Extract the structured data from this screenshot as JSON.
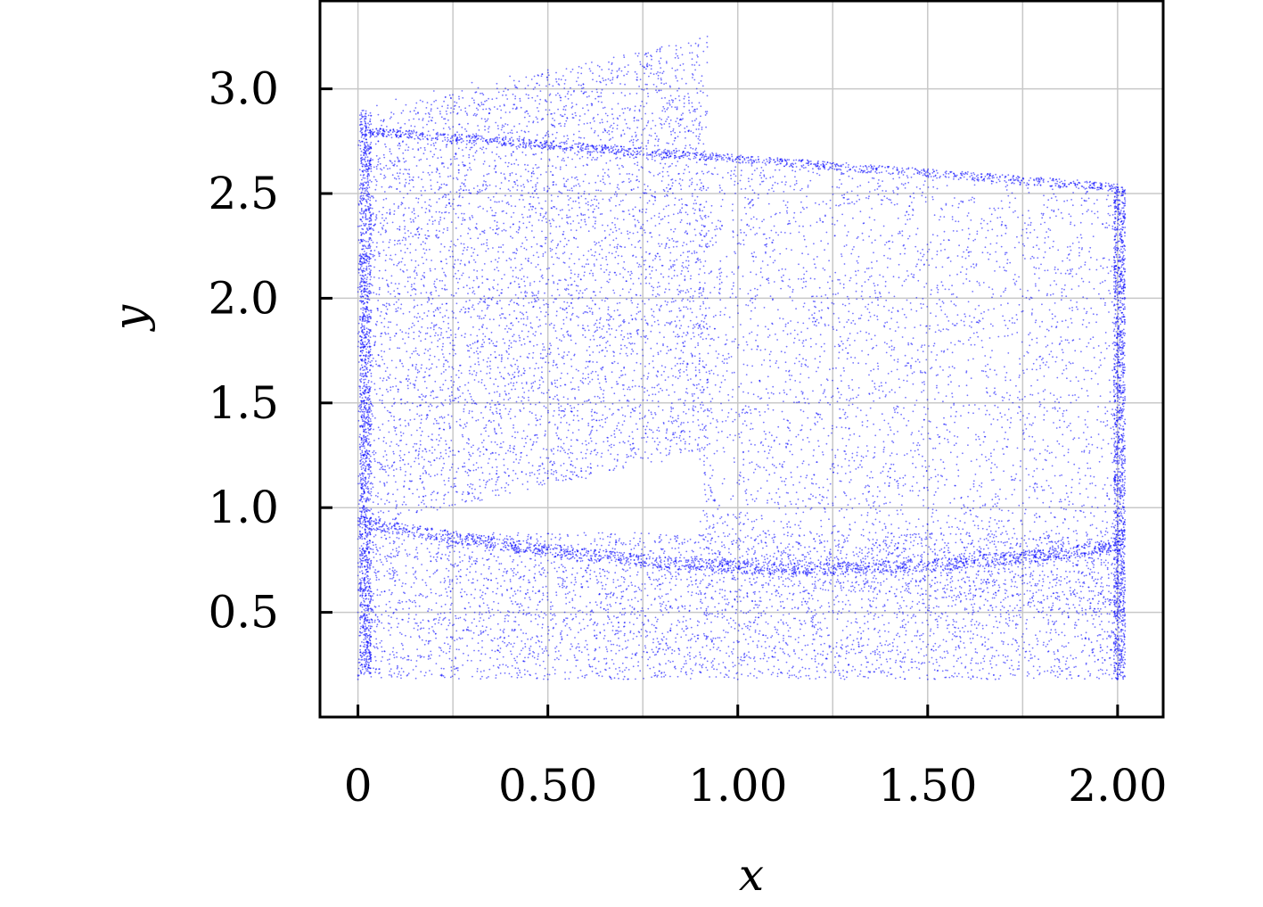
{
  "chart_data": {
    "type": "scatter",
    "xlabel": "x",
    "ylabel": "y",
    "xlim": [
      -0.1,
      2.12
    ],
    "ylim": [
      0.0,
      3.42
    ],
    "x_ticks": [
      0,
      0.5,
      1.0,
      1.5,
      2.0
    ],
    "x_tick_labels": [
      "0",
      "0.50",
      "1.00",
      "1.50",
      "2.00"
    ],
    "y_ticks": [
      0.5,
      1.0,
      1.5,
      2.0,
      2.5,
      3.0
    ],
    "y_tick_labels": [
      "0.5",
      "1.0",
      "1.5",
      "2.0",
      "2.5",
      "3.0"
    ],
    "grid_x": [
      0,
      0.25,
      0.5,
      0.75,
      1.0,
      1.25,
      1.5,
      1.75,
      2.0
    ],
    "grid": true,
    "point_color": "#0000ff",
    "series": [
      {
        "values_description_free": true,
        "points": [
          [
            0.02,
            2.88
          ],
          [
            0.05,
            2.92
          ],
          [
            0.1,
            2.95
          ],
          [
            0.2,
            2.99
          ],
          [
            0.3,
            3.03
          ],
          [
            0.4,
            3.06
          ],
          [
            0.5,
            3.09
          ],
          [
            0.6,
            3.12
          ],
          [
            0.7,
            3.16
          ],
          [
            0.8,
            3.2
          ],
          [
            0.92,
            3.25
          ],
          [
            0.02,
            2.8
          ],
          [
            0.1,
            2.78
          ],
          [
            0.3,
            2.74
          ],
          [
            0.5,
            2.71
          ],
          [
            0.7,
            2.68
          ],
          [
            0.9,
            2.66
          ],
          [
            1.2,
            2.64
          ],
          [
            1.5,
            2.61
          ],
          [
            1.8,
            2.57
          ],
          [
            2.0,
            2.53
          ],
          [
            0.92,
            1.3
          ],
          [
            0.92,
            2.0
          ],
          [
            0.92,
            2.6
          ],
          [
            0.92,
            3.2
          ],
          [
            2.02,
            2.5
          ],
          [
            2.02,
            2.0
          ],
          [
            2.02,
            1.4
          ],
          [
            2.0,
            0.9
          ],
          [
            2.0,
            0.5
          ],
          [
            2.0,
            0.2
          ],
          [
            0.0,
            0.85
          ],
          [
            0.0,
            0.5
          ],
          [
            0.0,
            0.2
          ],
          [
            0.01,
            1.5
          ],
          [
            0.01,
            2.2
          ],
          [
            0.02,
            2.7
          ],
          [
            0.03,
            0.93
          ],
          [
            0.2,
            1.0
          ],
          [
            0.4,
            1.07
          ],
          [
            0.6,
            1.14
          ],
          [
            0.8,
            1.22
          ],
          [
            0.9,
            1.27
          ],
          [
            0.05,
            0.8
          ],
          [
            0.3,
            0.73
          ],
          [
            0.6,
            0.7
          ],
          [
            1.0,
            0.66
          ],
          [
            1.4,
            0.6
          ],
          [
            1.8,
            0.5
          ],
          [
            2.0,
            0.48
          ],
          [
            0.3,
            0.85
          ],
          [
            0.8,
            0.8
          ],
          [
            1.2,
            0.85
          ],
          [
            1.5,
            0.92
          ],
          [
            1.8,
            1.1
          ],
          [
            1.95,
            1.35
          ],
          [
            0.0,
            0.18
          ],
          [
            0.5,
            0.18
          ],
          [
            1.0,
            0.18
          ],
          [
            1.5,
            0.18
          ],
          [
            2.0,
            0.18
          ]
        ]
      }
    ]
  }
}
